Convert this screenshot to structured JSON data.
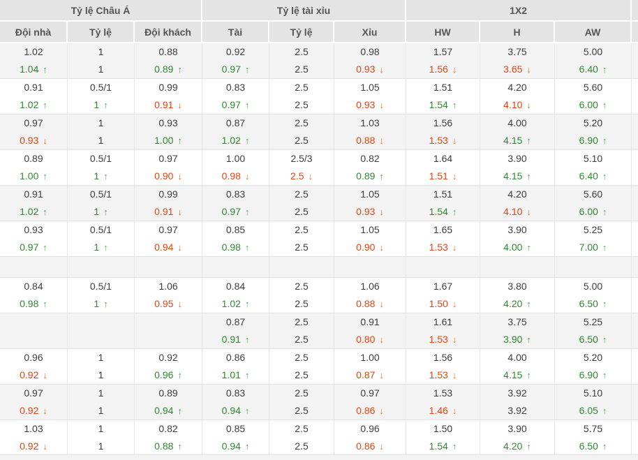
{
  "table": {
    "groups": [
      {
        "label": "Tỷ lệ Châu Á",
        "columns": [
          "Đội nhà",
          "Tỷ lệ",
          "Đội khách"
        ]
      },
      {
        "label": "Tỷ lệ tài xỉu",
        "columns": [
          "Tài",
          "Tỷ lệ",
          "Xỉu"
        ]
      },
      {
        "label": "1X2",
        "columns": [
          "HW",
          "H",
          "AW"
        ]
      }
    ],
    "icons": {
      "up": "↑",
      "down": "↓"
    },
    "colors": {
      "header_bg": "#e4e4e4",
      "header_text": "#555555",
      "stripe": "#f3f3f3",
      "text": "#3d3d3d",
      "green": "#2e8b2e",
      "green_arrow": "#55a755",
      "red": "#e8430e",
      "red_arrow": "#f06e1e",
      "vline": "#e7e7e7",
      "hline": "#e2e2e2"
    },
    "rows": [
      {
        "cells": [
          {
            "a": "1.02",
            "b": "1.04",
            "d": "up"
          },
          {
            "a": "1",
            "b": "1",
            "d": ""
          },
          {
            "a": "0.88",
            "b": "0.89",
            "d": "up"
          },
          {
            "a": "0.92",
            "b": "0.97",
            "d": "up"
          },
          {
            "a": "2.5",
            "b": "2.5",
            "d": ""
          },
          {
            "a": "0.98",
            "b": "0.93",
            "d": "down"
          },
          {
            "a": "1.57",
            "b": "1.56",
            "d": "down"
          },
          {
            "a": "3.75",
            "b": "3.65",
            "d": "down"
          },
          {
            "a": "5.00",
            "b": "6.40",
            "d": "up"
          }
        ]
      },
      {
        "cells": [
          {
            "a": "0.91",
            "b": "1.02",
            "d": "up"
          },
          {
            "a": "0.5/1",
            "b": "1",
            "d": "up"
          },
          {
            "a": "0.99",
            "b": "0.91",
            "d": "down"
          },
          {
            "a": "0.83",
            "b": "0.97",
            "d": "up"
          },
          {
            "a": "2.5",
            "b": "2.5",
            "d": ""
          },
          {
            "a": "1.05",
            "b": "0.93",
            "d": "down"
          },
          {
            "a": "1.51",
            "b": "1.54",
            "d": "up"
          },
          {
            "a": "4.20",
            "b": "4.10",
            "d": "down"
          },
          {
            "a": "5.60",
            "b": "6.00",
            "d": "up"
          }
        ]
      },
      {
        "cells": [
          {
            "a": "0.97",
            "b": "0.93",
            "d": "down"
          },
          {
            "a": "1",
            "b": "1",
            "d": ""
          },
          {
            "a": "0.93",
            "b": "1.00",
            "d": "up"
          },
          {
            "a": "0.87",
            "b": "1.02",
            "d": "up"
          },
          {
            "a": "2.5",
            "b": "2.5",
            "d": ""
          },
          {
            "a": "1.03",
            "b": "0.88",
            "d": "down"
          },
          {
            "a": "1.56",
            "b": "1.53",
            "d": "down"
          },
          {
            "a": "4.00",
            "b": "4.15",
            "d": "up"
          },
          {
            "a": "5.20",
            "b": "6.90",
            "d": "up"
          }
        ]
      },
      {
        "cells": [
          {
            "a": "0.89",
            "b": "1.00",
            "d": "up"
          },
          {
            "a": "0.5/1",
            "b": "1",
            "d": "up"
          },
          {
            "a": "0.97",
            "b": "0.90",
            "d": "down"
          },
          {
            "a": "1.00",
            "b": "0.98",
            "d": "down"
          },
          {
            "a": "2.5/3",
            "b": "2.5",
            "d": "down"
          },
          {
            "a": "0.82",
            "b": "0.89",
            "d": "up"
          },
          {
            "a": "1.64",
            "b": "1.51",
            "d": "down"
          },
          {
            "a": "3.90",
            "b": "4.15",
            "d": "up"
          },
          {
            "a": "5.10",
            "b": "6.40",
            "d": "up"
          }
        ]
      },
      {
        "cells": [
          {
            "a": "0.91",
            "b": "1.02",
            "d": "up"
          },
          {
            "a": "0.5/1",
            "b": "1",
            "d": "up"
          },
          {
            "a": "0.99",
            "b": "0.91",
            "d": "down"
          },
          {
            "a": "0.83",
            "b": "0.97",
            "d": "up"
          },
          {
            "a": "2.5",
            "b": "2.5",
            "d": ""
          },
          {
            "a": "1.05",
            "b": "0.93",
            "d": "down"
          },
          {
            "a": "1.51",
            "b": "1.54",
            "d": "up"
          },
          {
            "a": "4.20",
            "b": "4.10",
            "d": "down"
          },
          {
            "a": "5.60",
            "b": "6.00",
            "d": "up"
          }
        ]
      },
      {
        "cells": [
          {
            "a": "0.93",
            "b": "0.97",
            "d": "up"
          },
          {
            "a": "0.5/1",
            "b": "1",
            "d": "up"
          },
          {
            "a": "0.97",
            "b": "0.94",
            "d": "down"
          },
          {
            "a": "0.85",
            "b": "0.98",
            "d": "up"
          },
          {
            "a": "2.5",
            "b": "2.5",
            "d": ""
          },
          {
            "a": "1.05",
            "b": "0.90",
            "d": "down"
          },
          {
            "a": "1.65",
            "b": "1.53",
            "d": "down"
          },
          {
            "a": "3.90",
            "b": "4.00",
            "d": "up"
          },
          {
            "a": "5.25",
            "b": "7.00",
            "d": "up"
          }
        ]
      },
      {
        "spacer": true
      },
      {
        "cells": [
          {
            "a": "0.84",
            "b": "0.98",
            "d": "up"
          },
          {
            "a": "0.5/1",
            "b": "1",
            "d": "up"
          },
          {
            "a": "1.06",
            "b": "0.95",
            "d": "down"
          },
          {
            "a": "0.84",
            "b": "1.02",
            "d": "up"
          },
          {
            "a": "2.5",
            "b": "2.5",
            "d": ""
          },
          {
            "a": "1.06",
            "b": "0.88",
            "d": "down"
          },
          {
            "a": "1.67",
            "b": "1.50",
            "d": "down"
          },
          {
            "a": "3.80",
            "b": "4.20",
            "d": "up"
          },
          {
            "a": "5.00",
            "b": "6.50",
            "d": "up"
          }
        ]
      },
      {
        "cells": [
          {
            "a": "",
            "b": "",
            "d": ""
          },
          {
            "a": "",
            "b": "",
            "d": ""
          },
          {
            "a": "",
            "b": "",
            "d": ""
          },
          {
            "a": "0.87",
            "b": "0.91",
            "d": "up"
          },
          {
            "a": "2.5",
            "b": "2.5",
            "d": ""
          },
          {
            "a": "0.91",
            "b": "0.80",
            "d": "down"
          },
          {
            "a": "1.61",
            "b": "1.53",
            "d": "down"
          },
          {
            "a": "3.75",
            "b": "3.90",
            "d": "up"
          },
          {
            "a": "5.25",
            "b": "6.50",
            "d": "up"
          }
        ]
      },
      {
        "cells": [
          {
            "a": "0.96",
            "b": "0.92",
            "d": "down"
          },
          {
            "a": "1",
            "b": "1",
            "d": ""
          },
          {
            "a": "0.92",
            "b": "0.96",
            "d": "up"
          },
          {
            "a": "0.86",
            "b": "1.01",
            "d": "up"
          },
          {
            "a": "2.5",
            "b": "2.5",
            "d": ""
          },
          {
            "a": "1.00",
            "b": "0.87",
            "d": "down"
          },
          {
            "a": "1.56",
            "b": "1.53",
            "d": "down"
          },
          {
            "a": "4.00",
            "b": "4.15",
            "d": "up"
          },
          {
            "a": "5.20",
            "b": "6.90",
            "d": "up"
          }
        ]
      },
      {
        "cells": [
          {
            "a": "0.97",
            "b": "0.92",
            "d": "down"
          },
          {
            "a": "1",
            "b": "1",
            "d": ""
          },
          {
            "a": "0.89",
            "b": "0.94",
            "d": "up"
          },
          {
            "a": "0.83",
            "b": "0.94",
            "d": "up"
          },
          {
            "a": "2.5",
            "b": "2.5",
            "d": ""
          },
          {
            "a": "0.97",
            "b": "0.86",
            "d": "down"
          },
          {
            "a": "1.53",
            "b": "1.46",
            "d": "down"
          },
          {
            "a": "3.92",
            "b": "3.92",
            "d": ""
          },
          {
            "a": "5.10",
            "b": "6.05",
            "d": "up"
          }
        ]
      },
      {
        "cells": [
          {
            "a": "1.03",
            "b": "0.92",
            "d": "down"
          },
          {
            "a": "1",
            "b": "1",
            "d": ""
          },
          {
            "a": "0.82",
            "b": "0.88",
            "d": "up"
          },
          {
            "a": "0.85",
            "b": "0.94",
            "d": "up"
          },
          {
            "a": "2.5",
            "b": "2.5",
            "d": ""
          },
          {
            "a": "0.96",
            "b": "0.86",
            "d": "down"
          },
          {
            "a": "1.50",
            "b": "1.54",
            "d": "up"
          },
          {
            "a": "3.90",
            "b": "4.20",
            "d": "up"
          },
          {
            "a": "5.75",
            "b": "6.50",
            "d": "up"
          }
        ]
      }
    ]
  }
}
